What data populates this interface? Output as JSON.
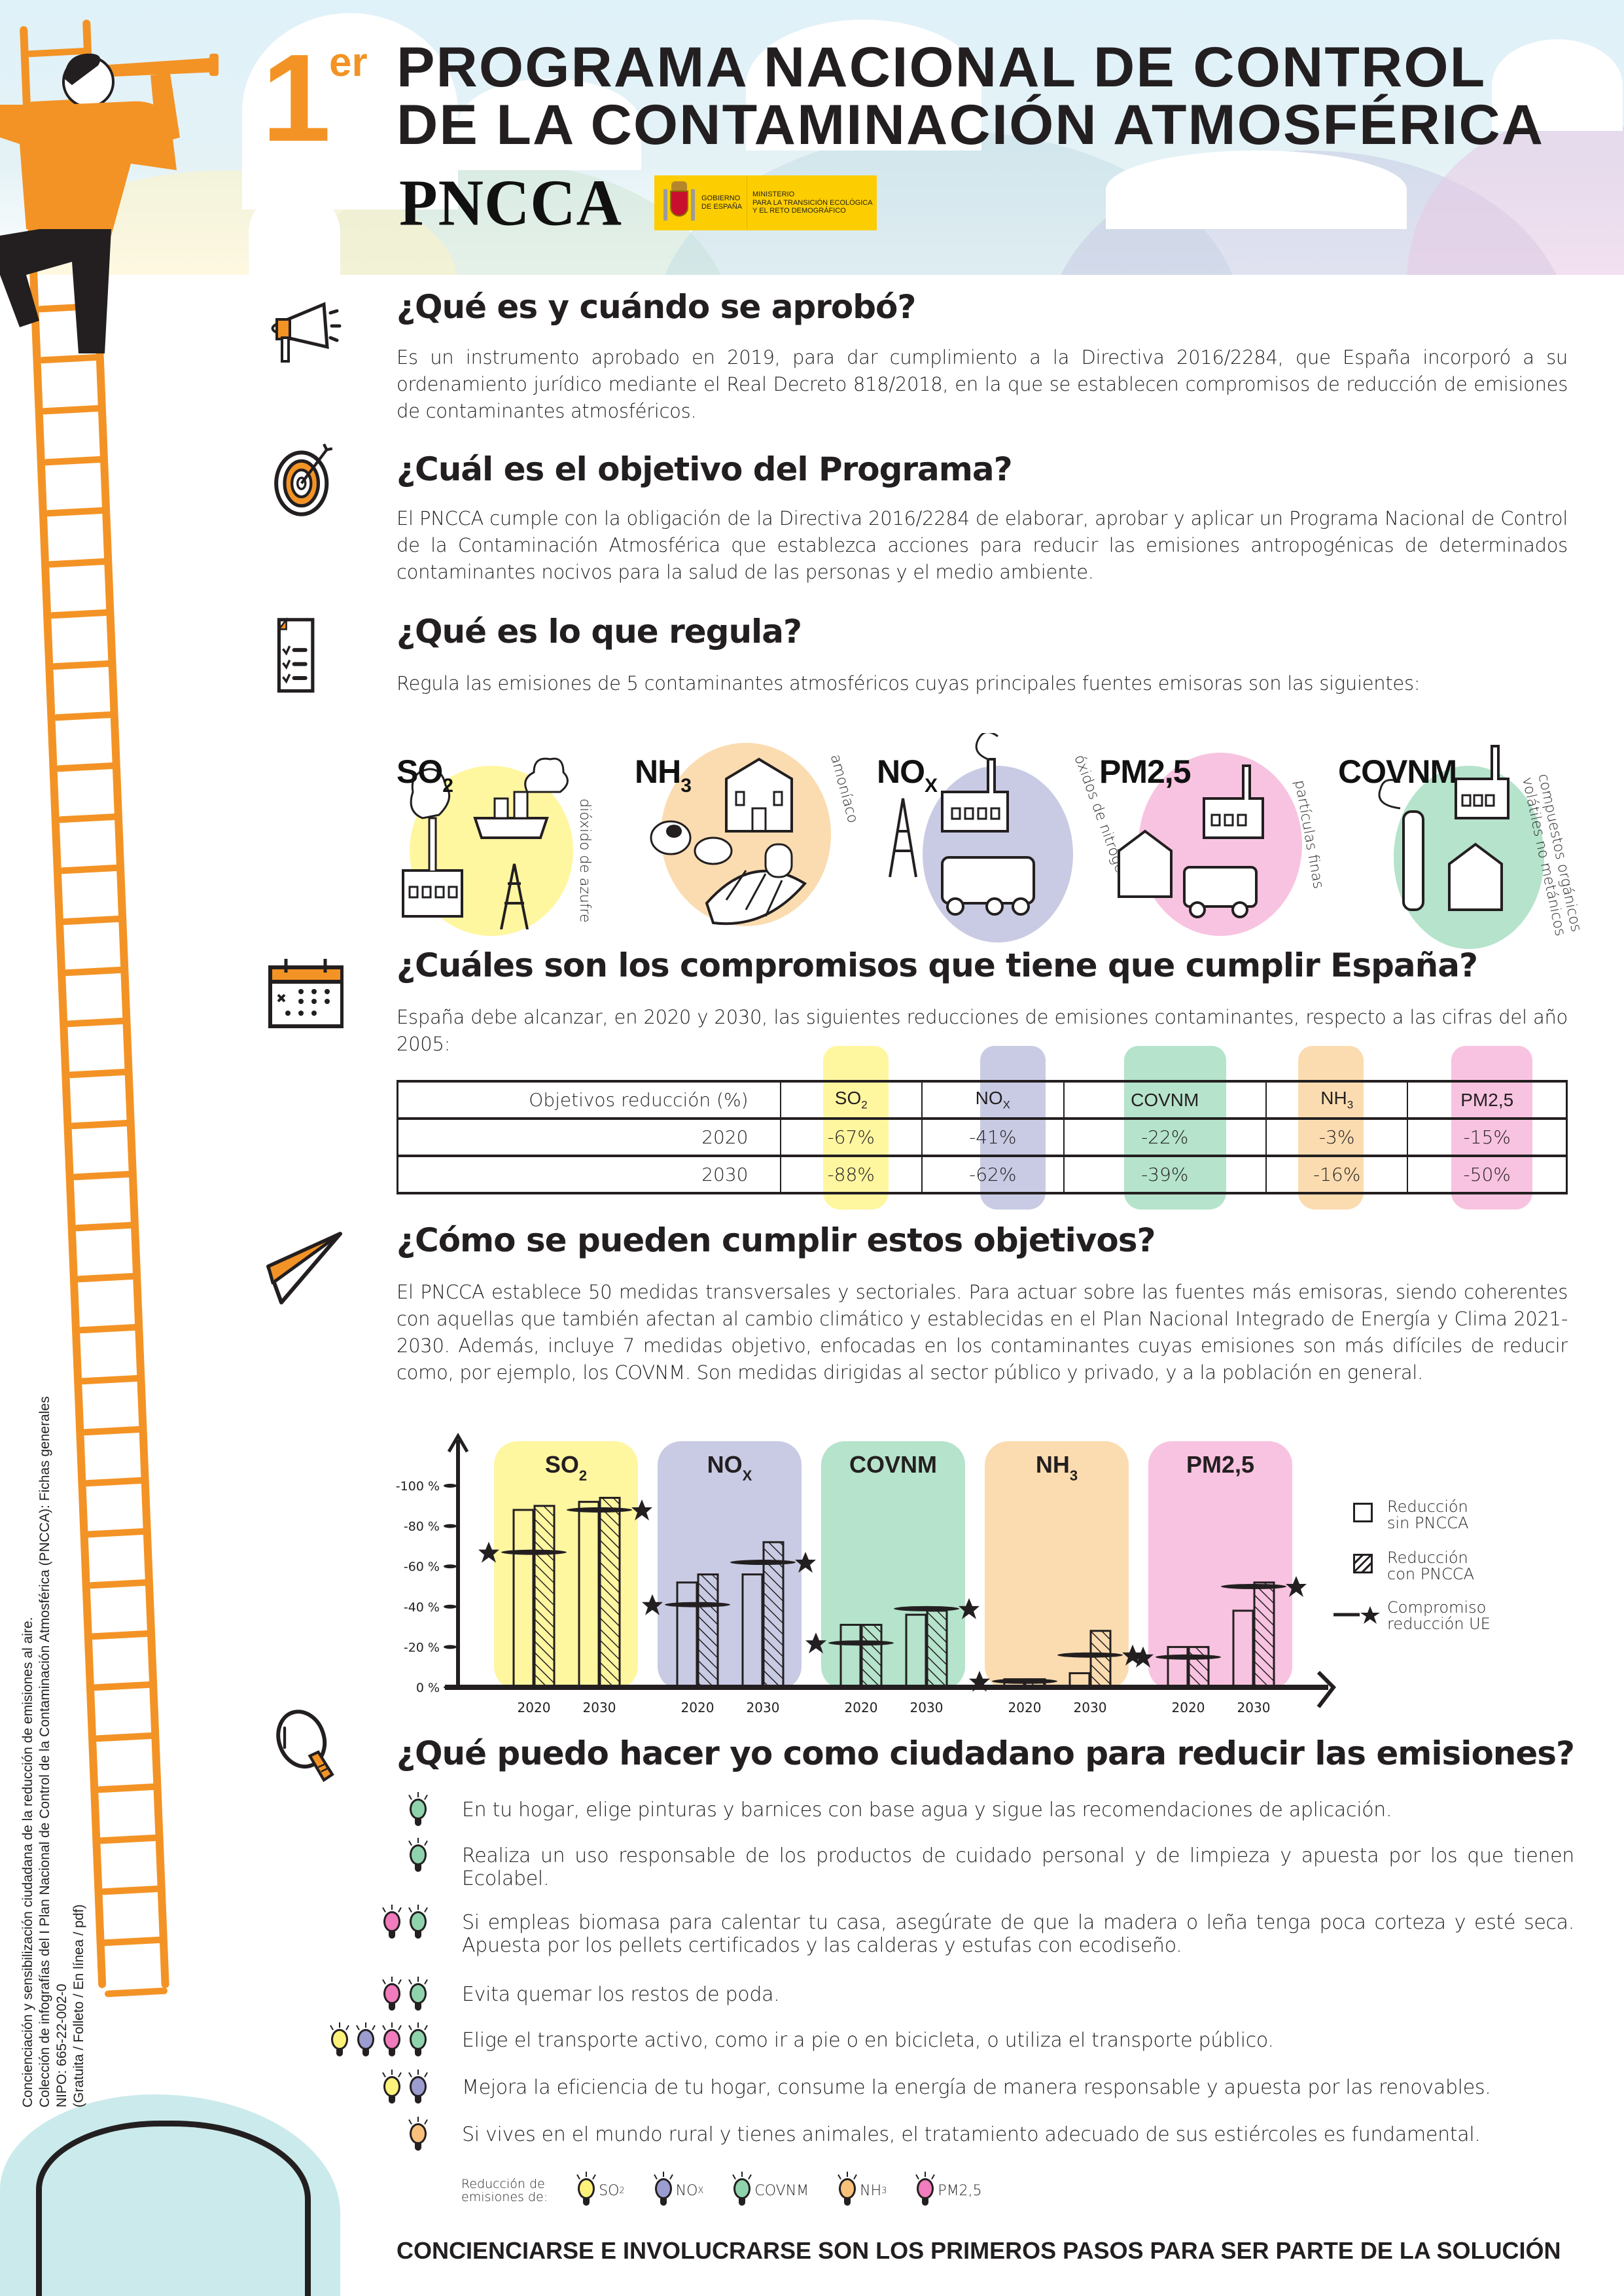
{
  "header": {
    "title_number": "1",
    "title_superscript": "er",
    "title_line_1": "PROGRAMA NACIONAL DE CONTROL",
    "title_line_2": "DE LA CONTAMINACIÓN ATMOSFÉRICA",
    "logo_text": "PNCCA",
    "gov_badge": {
      "left_text": "GOBIERNO\nDE ESPAÑA",
      "right_text": "MINISTERIO\nPARA LA TRANSICIÓN ECOLÓGICA\nY EL RETO DEMOGRÁFICO"
    }
  },
  "side_note": [
    "Concienciación y sensibilización ciudadana de la reducción de emisiones al aire.",
    "Colección de infografías del I Plan Nacional de Control de la Contaminación Atmosférica (PNCCA): Fichas generales",
    "NIPO: 665-22-002-0",
    "(Gratuita / Folleto / En línea / pdf)"
  ],
  "sections": {
    "what": {
      "icon": "megaphone-icon",
      "title": "¿Qué es y cuándo se aprobó?",
      "body": "Es un instrumento aprobado en 2019, para dar cumplimiento a la Directiva 2016/2284, que España incorporó a su ordenamiento jurídico mediante el Real Decreto 818/2018, en la que se establecen compromisos de reducción de emisiones de contaminantes atmosféricos."
    },
    "objective": {
      "icon": "target-icon",
      "title": "¿Cuál es el objetivo del Programa?",
      "body": "El PNCCA cumple con la obligación de la Directiva 2016/2284 de elaborar, aprobar y aplicar un Programa Nacional de Control de la Contaminación Atmosférica que establezca acciones para reducir las emisiones antropogénicas de determinados contaminantes nocivos para la salud de las personas y el medio ambiente."
    },
    "regulates": {
      "icon": "checklist-icon",
      "title": "¿Qué es lo que regula?",
      "body": "Regula las emisiones de 5 contaminantes atmosféricos cuyas principales fuentes emisoras son las siguientes:"
    },
    "commitments": {
      "icon": "calendar-icon",
      "title": "¿Cuáles son los compromisos que tiene que cumplir España?",
      "body": "España debe alcanzar, en 2020 y 2030, las siguientes reducciones de emisiones contaminantes, respecto a las cifras del año 2005:"
    },
    "how": {
      "icon": "paper-plane-icon",
      "title": "¿Cómo se pueden cumplir estos objetivos?",
      "body": "El PNCCA establece 50 medidas transversales y sectoriales. Para actuar sobre las fuentes más emisoras, siendo coherentes con aquellas que también afectan al cambio climático y establecidas en el Plan Nacional Integrado de Energía y Clima 2021-2030. Además, incluye 7 medidas objetivo, enfocadas en los contaminantes cuyas emisiones son más difíciles de reducir como, por ejemplo, los COVNM. Son medidas dirigidas al sector público y privado, y a la población en general."
    },
    "citizen": {
      "icon": "lightbulb-icon",
      "title": "¿Qué puedo hacer yo como ciudadano para reducir las emisiones?"
    }
  },
  "pollutants": [
    {
      "base": "SO",
      "sub": "2",
      "desc": "dióxido de azufre",
      "color": "#fff6a0"
    },
    {
      "base": "NH",
      "sub": "3",
      "desc": "amoníaco",
      "color": "#fbdcb0"
    },
    {
      "base": "NO",
      "sub": "X",
      "desc": "óxidos de nitrógeno",
      "color": "#c9cbe4"
    },
    {
      "base": "PM2,5",
      "sub": "",
      "desc": "partículas finas",
      "color": "#f8c3e0"
    },
    {
      "base": "COVNM",
      "sub": "",
      "desc": "compuestos orgánicos volátiles no metánicos",
      "color": "#b5e3cb"
    }
  ],
  "table": {
    "header_label": "Objetivos reducción (%)",
    "columns": [
      {
        "base": "SO",
        "sub": "2",
        "color": "#fff6a0"
      },
      {
        "base": "NO",
        "sub": "X",
        "color": "#c9cbe4"
      },
      {
        "base": "COVNM",
        "sub": "",
        "color": "#b5e3cb"
      },
      {
        "base": "NH",
        "sub": "3",
        "color": "#fbdcb0"
      },
      {
        "base": "PM2,5",
        "sub": "",
        "color": "#f8c3e0"
      }
    ],
    "rows": [
      {
        "year": "2020",
        "values": [
          "-67%",
          "-41%",
          "-22%",
          "-3%",
          "-15%"
        ]
      },
      {
        "year": "2030",
        "values": [
          "-88%",
          "-62%",
          "-39%",
          "-16%",
          "-50%"
        ]
      }
    ]
  },
  "chart_data": {
    "type": "bar",
    "title": "",
    "xlabel": "",
    "ylabel": "",
    "ylim": [
      0,
      -100
    ],
    "y_ticks": [
      "0 %",
      "-20 %",
      "-40 %",
      "-60 %",
      "-80 %",
      "-100 %"
    ],
    "groups": [
      {
        "name": "SO2",
        "label_base": "SO",
        "label_sub": "2",
        "color": "#fff6a0",
        "years": [
          "2020",
          "2030"
        ],
        "sin_pncca": [
          88,
          92
        ],
        "con_pncca": [
          90,
          94
        ],
        "compromiso_ue": [
          67,
          88
        ]
      },
      {
        "name": "NOx",
        "label_base": "NO",
        "label_sub": "X",
        "color": "#c9cbe4",
        "years": [
          "2020",
          "2030"
        ],
        "sin_pncca": [
          52,
          56
        ],
        "con_pncca": [
          56,
          72
        ],
        "compromiso_ue": [
          41,
          62
        ]
      },
      {
        "name": "COVNM",
        "label_base": "COVNM",
        "label_sub": "",
        "color": "#b5e3cb",
        "years": [
          "2020",
          "2030"
        ],
        "sin_pncca": [
          31,
          36
        ],
        "con_pncca": [
          31,
          38
        ],
        "compromiso_ue": [
          22,
          39
        ]
      },
      {
        "name": "NH3",
        "label_base": "NH",
        "label_sub": "3",
        "color": "#fbdcb0",
        "years": [
          "2020",
          "2030"
        ],
        "sin_pncca": [
          4,
          7
        ],
        "con_pncca": [
          4,
          28
        ],
        "compromiso_ue": [
          3,
          16
        ]
      },
      {
        "name": "PM2,5",
        "label_base": "PM2,5",
        "label_sub": "",
        "color": "#f8c3e0",
        "years": [
          "2020",
          "2030"
        ],
        "sin_pncca": [
          20,
          38
        ],
        "con_pncca": [
          20,
          52
        ],
        "compromiso_ue": [
          15,
          50
        ]
      }
    ],
    "legend": [
      {
        "key": "sin_pncca",
        "label": "Reducción\nsin PNCCA",
        "marker": "empty-box"
      },
      {
        "key": "con_pncca",
        "label": "Reducción\ncon PNCCA",
        "marker": "hatched-box"
      },
      {
        "key": "compromiso_ue",
        "label": "Compromiso\nreducción UE",
        "marker": "line-star"
      }
    ],
    "legend_position": "right"
  },
  "tips": [
    {
      "text": "En tu hogar, elige pinturas y barnices con base agua y sigue las recomendaciones de aplicación.",
      "bulbs": [
        "covnm"
      ]
    },
    {
      "text": "Realiza un uso responsable de los productos de cuidado personal y de limpieza y apuesta por los que tienen Ecolabel.",
      "bulbs": [
        "covnm"
      ]
    },
    {
      "text": "Si empleas biomasa para calentar tu casa, asegúrate de que la madera o leña tenga poca corteza y esté seca. Apuesta por los pellets certificados y las calderas y estufas con ecodiseño.",
      "bulbs": [
        "pm25",
        "covnm"
      ]
    },
    {
      "text": "Evita quemar los restos de poda.",
      "bulbs": [
        "pm25",
        "covnm"
      ]
    },
    {
      "text": "Elige el transporte activo, como ir a pie o en bicicleta, o utiliza el transporte público.",
      "bulbs": [
        "so2",
        "nox",
        "pm25",
        "covnm"
      ]
    },
    {
      "text": "Mejora la eficiencia de tu hogar, consume la energía de manera responsable y apuesta por las renovables.",
      "bulbs": [
        "so2",
        "nox"
      ]
    },
    {
      "text": "Si vives en el mundo rural y tienes animales, el tratamiento adecuado de sus estiércoles es fundamental.",
      "bulbs": [
        "nh3"
      ]
    }
  ],
  "bulb_colors": {
    "so2": "#fff27a",
    "nox": "#9b9ccf",
    "covnm": "#8fd3ad",
    "nh3": "#f8c07a",
    "pm25": "#f07bbd"
  },
  "bulb_legend": {
    "label": "Reducción de\nemisiones de:",
    "items": [
      {
        "key": "so2",
        "base": "SO",
        "sub": "2"
      },
      {
        "key": "nox",
        "base": "NO",
        "sub": "X"
      },
      {
        "key": "covnm",
        "base": "COVNM",
        "sub": ""
      },
      {
        "key": "nh3",
        "base": "NH",
        "sub": "3"
      },
      {
        "key": "pm25",
        "base": "PM2,5",
        "sub": ""
      }
    ]
  },
  "footer": "CONCIENCIARSE E INVOLUCRARSE SON LOS PRIMEROS PASOS PARA SER PARTE DE LA SOLUCIÓN",
  "colors": {
    "accent": "#f39325",
    "text": "#231f20"
  }
}
